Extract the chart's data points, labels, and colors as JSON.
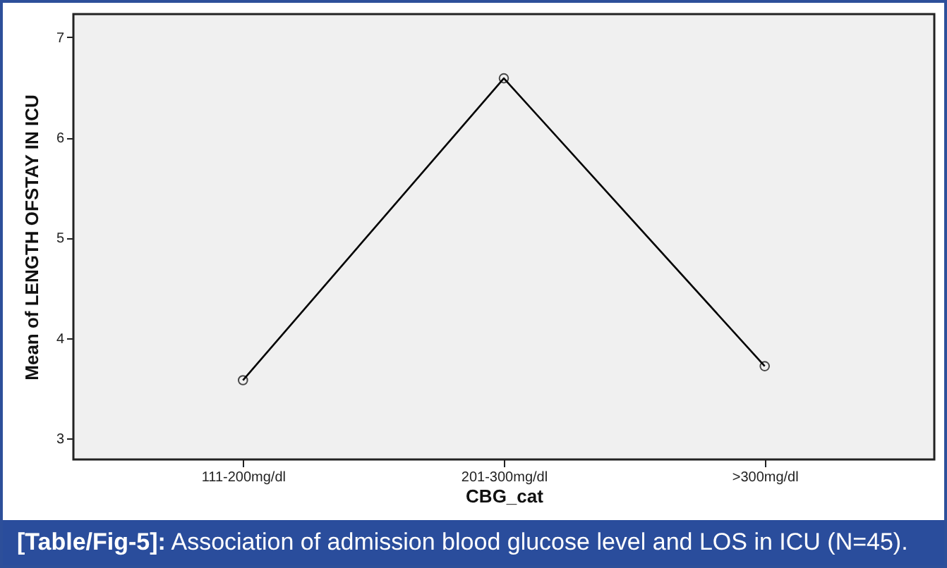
{
  "chart_data": {
    "type": "line",
    "xlabel": "CBG_cat",
    "ylabel": "Mean of LENGTH OFSTAY IN ICU",
    "categories": [
      "111-200mg/dl",
      "201-300mg/dl",
      ">300mg/dl"
    ],
    "series": [
      {
        "color": "#000000",
        "values": [
          3.58,
          6.59,
          3.72
        ]
      }
    ],
    "ylim": [
      2.79,
      7.23
    ],
    "yticks": [
      3,
      4,
      5,
      6,
      7
    ],
    "grid": false,
    "marker": "circle",
    "line_style": "solid",
    "annotations": [
      "[Table/Fig-5]: Association of admission blood glucose level and LOS in ICU (N=45)."
    ]
  }
}
